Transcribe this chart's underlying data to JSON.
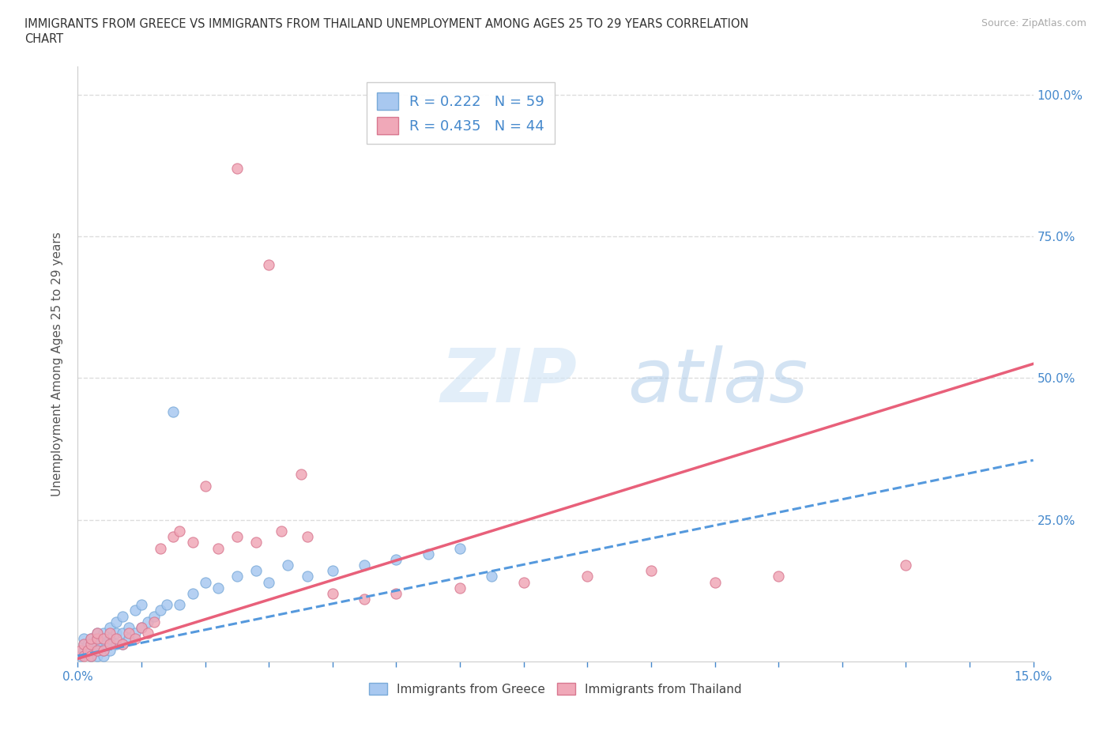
{
  "title_line1": "IMMIGRANTS FROM GREECE VS IMMIGRANTS FROM THAILAND UNEMPLOYMENT AMONG AGES 25 TO 29 YEARS CORRELATION",
  "title_line2": "CHART",
  "source_text": "Source: ZipAtlas.com",
  "ylabel": "Unemployment Among Ages 25 to 29 years",
  "xmin": 0.0,
  "xmax": 0.15,
  "ymin": 0.0,
  "ymax": 1.05,
  "greece_color": "#a8c8f0",
  "greece_edge": "#7aaad8",
  "thailand_color": "#f0a8b8",
  "thailand_edge": "#d87890",
  "greece_R": 0.222,
  "greece_N": 59,
  "thailand_R": 0.435,
  "thailand_N": 44,
  "watermark": "ZIPatlas",
  "watermark_color": "#c8ddf0",
  "legend_label_greece": "Immigrants from Greece",
  "legend_label_thailand": "Immigrants from Thailand",
  "greece_line_color": "#5599dd",
  "thailand_line_color": "#e8607a",
  "grid_color": "#dddddd",
  "axis_color": "#cccccc",
  "tick_color": "#4488cc",
  "background_color": "#ffffff",
  "greece_scatter_x": [
    0.0005,
    0.001,
    0.001,
    0.001,
    0.0015,
    0.0015,
    0.002,
    0.002,
    0.002,
    0.002,
    0.0025,
    0.0025,
    0.003,
    0.003,
    0.003,
    0.003,
    0.003,
    0.0035,
    0.004,
    0.004,
    0.004,
    0.004,
    0.0045,
    0.005,
    0.005,
    0.005,
    0.005,
    0.006,
    0.006,
    0.006,
    0.007,
    0.007,
    0.007,
    0.008,
    0.008,
    0.009,
    0.009,
    0.01,
    0.01,
    0.011,
    0.012,
    0.013,
    0.014,
    0.015,
    0.016,
    0.018,
    0.02,
    0.022,
    0.025,
    0.028,
    0.03,
    0.033,
    0.036,
    0.04,
    0.045,
    0.05,
    0.055,
    0.06,
    0.065
  ],
  "greece_scatter_y": [
    0.01,
    0.02,
    0.03,
    0.04,
    0.02,
    0.03,
    0.01,
    0.02,
    0.03,
    0.04,
    0.02,
    0.03,
    0.01,
    0.02,
    0.03,
    0.04,
    0.05,
    0.03,
    0.01,
    0.02,
    0.04,
    0.05,
    0.03,
    0.02,
    0.03,
    0.04,
    0.06,
    0.03,
    0.05,
    0.07,
    0.03,
    0.05,
    0.08,
    0.04,
    0.06,
    0.05,
    0.09,
    0.06,
    0.1,
    0.07,
    0.08,
    0.09,
    0.1,
    0.44,
    0.1,
    0.12,
    0.14,
    0.13,
    0.15,
    0.16,
    0.14,
    0.17,
    0.15,
    0.16,
    0.17,
    0.18,
    0.19,
    0.2,
    0.15
  ],
  "thailand_scatter_x": [
    0.0005,
    0.001,
    0.001,
    0.0015,
    0.002,
    0.002,
    0.002,
    0.003,
    0.003,
    0.003,
    0.004,
    0.004,
    0.005,
    0.005,
    0.006,
    0.007,
    0.008,
    0.009,
    0.01,
    0.011,
    0.012,
    0.013,
    0.015,
    0.016,
    0.018,
    0.02,
    0.022,
    0.025,
    0.028,
    0.032,
    0.036,
    0.04,
    0.045,
    0.05,
    0.06,
    0.07,
    0.08,
    0.09,
    0.1,
    0.11,
    0.025,
    0.03,
    0.035,
    0.13
  ],
  "thailand_scatter_y": [
    0.02,
    0.01,
    0.03,
    0.02,
    0.01,
    0.03,
    0.04,
    0.02,
    0.04,
    0.05,
    0.02,
    0.04,
    0.03,
    0.05,
    0.04,
    0.03,
    0.05,
    0.04,
    0.06,
    0.05,
    0.07,
    0.2,
    0.22,
    0.23,
    0.21,
    0.31,
    0.2,
    0.22,
    0.21,
    0.23,
    0.22,
    0.12,
    0.11,
    0.12,
    0.13,
    0.14,
    0.15,
    0.16,
    0.14,
    0.15,
    0.87,
    0.7,
    0.33,
    0.17
  ],
  "greece_line_x": [
    0.0,
    0.15
  ],
  "greece_line_y": [
    0.01,
    0.355
  ],
  "thailand_line_x": [
    0.0,
    0.15
  ],
  "thailand_line_y": [
    0.005,
    0.525
  ]
}
